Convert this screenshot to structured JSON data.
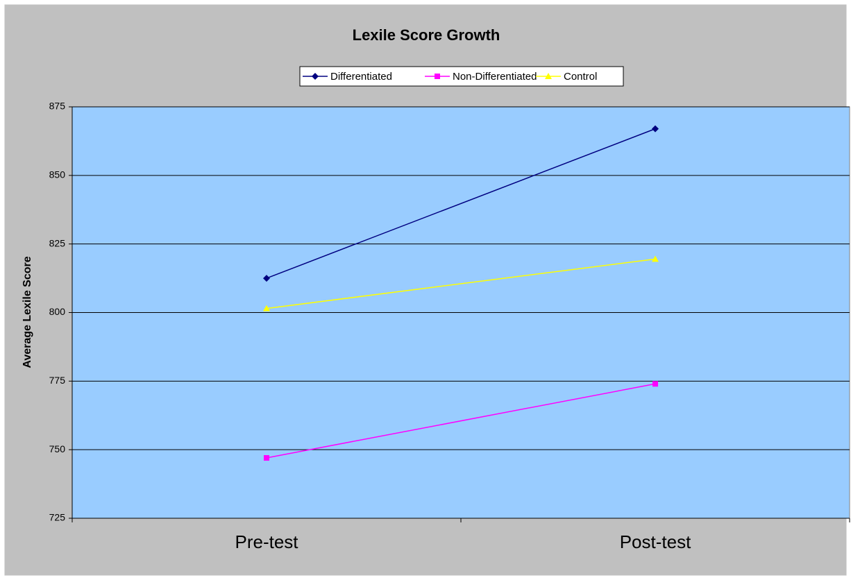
{
  "chart_data": {
    "type": "line",
    "title": "Lexile Score Growth",
    "y_label": "Average Lexile Score",
    "categories": [
      "Pre-test",
      "Post-test"
    ],
    "series": [
      {
        "name": "Differentiated",
        "color": "#000080",
        "marker": "diamond",
        "values": [
          812.5,
          867
        ]
      },
      {
        "name": "Non-Differentiated",
        "color": "#ff00ff",
        "marker": "square",
        "values": [
          747,
          774
        ]
      },
      {
        "name": "Control",
        "color": "#ffff00",
        "marker": "triangle",
        "values": [
          801.5,
          819.5
        ]
      }
    ],
    "ylim": [
      725,
      875
    ],
    "yticks": [
      725,
      750,
      775,
      800,
      825,
      850,
      875
    ],
    "grid": true,
    "legend": "top",
    "plot_background": "#99ccff",
    "background": "#c0c0c0"
  }
}
